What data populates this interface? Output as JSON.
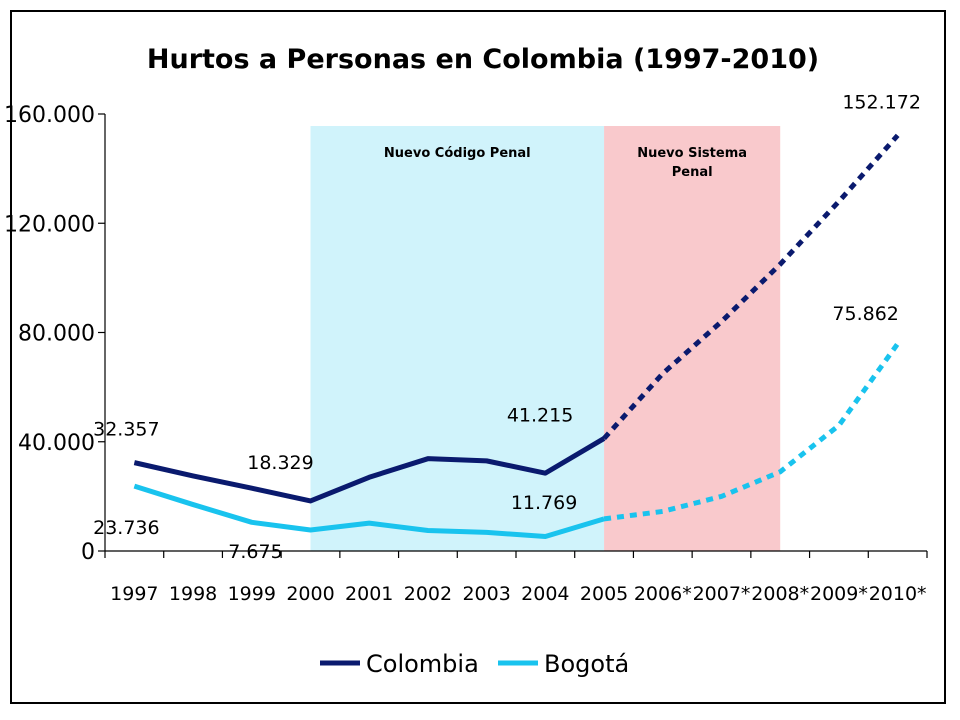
{
  "chart_data": {
    "type": "line",
    "title": "Hurtos a Personas en Colombia (1997-2010)",
    "categories": [
      "1997",
      "1998",
      "1999",
      "2000",
      "2001",
      "2002",
      "2003",
      "2004",
      "2005",
      "2006*",
      "2007*",
      "2008*",
      "2009*",
      "2010*"
    ],
    "ylim": [
      0,
      160000
    ],
    "yticks": [
      0,
      40000,
      80000,
      120000,
      160000
    ],
    "ytick_labels": [
      "0",
      "40.000",
      "80.000",
      "120.000",
      "160.000"
    ],
    "grid": false,
    "legend_position": "bottom",
    "series": [
      {
        "name": "Colombia",
        "color": "#0a1a6e",
        "values": [
          32357,
          27500,
          23000,
          18329,
          27000,
          33800,
          33000,
          28500,
          41215,
          65000,
          84000,
          105000,
          128000,
          152172
        ],
        "projection_start_index": 8
      },
      {
        "name": "Bogotá",
        "color": "#19c3ee",
        "values": [
          23736,
          17000,
          10500,
          7675,
          10200,
          7500,
          6800,
          5300,
          11769,
          14500,
          20000,
          29000,
          46000,
          75862
        ],
        "projection_start_index": 8
      }
    ],
    "bands": [
      {
        "label": "Nuevo Código Penal",
        "from": "2000",
        "to": "2005",
        "color": "#d0f3fb"
      },
      {
        "label": "Nuevo Sistema Penal",
        "lines": [
          "Nuevo Sistema",
          "Penal"
        ],
        "from": "2005",
        "to": "2008*",
        "color": "#f9c9cc"
      }
    ],
    "data_labels": [
      {
        "series": "Colombia",
        "category": "1997",
        "text": "32.357"
      },
      {
        "series": "Colombia",
        "category": "2000",
        "text": "18.329"
      },
      {
        "series": "Colombia",
        "category": "2005",
        "text": "41.215"
      },
      {
        "series": "Colombia",
        "category": "2010*",
        "text": "152.172"
      },
      {
        "series": "Bogotá",
        "category": "1997",
        "text": "23.736"
      },
      {
        "series": "Bogotá",
        "category": "2000",
        "text": "7.675"
      },
      {
        "series": "Bogotá",
        "category": "2005",
        "text": "11.769"
      },
      {
        "series": "Bogotá",
        "category": "2010*",
        "text": "75.862"
      }
    ]
  }
}
